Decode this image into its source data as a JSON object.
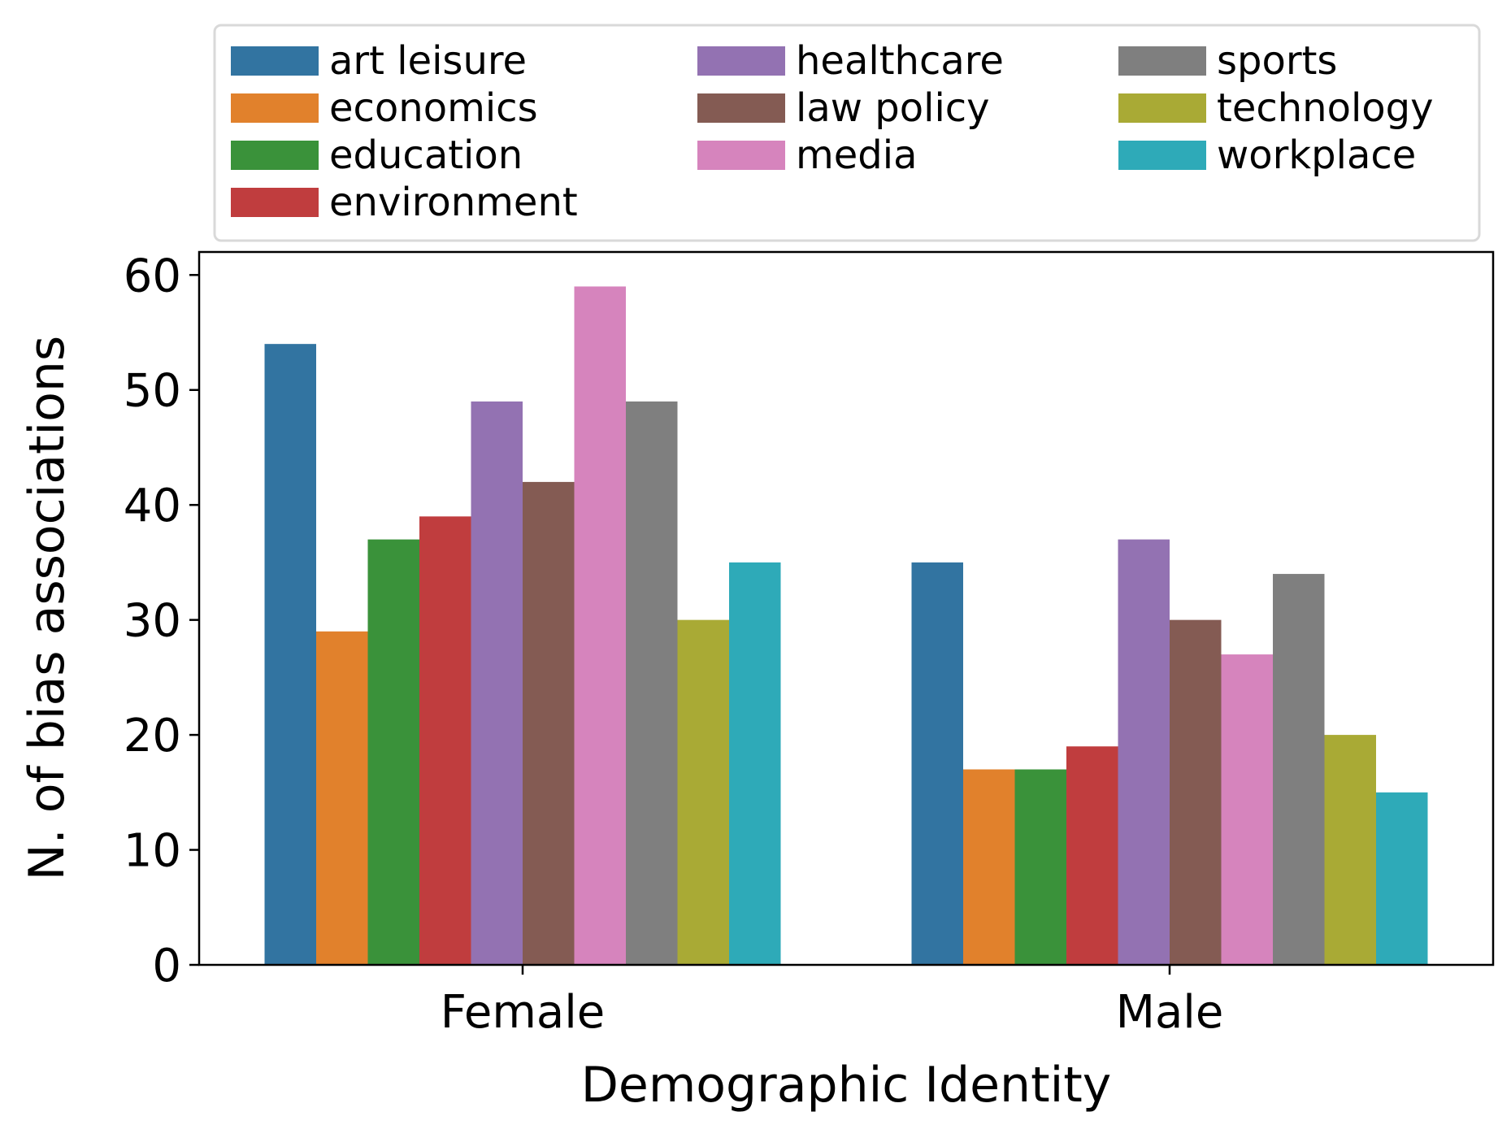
{
  "chart_data": {
    "type": "bar",
    "title": "",
    "xlabel": "Demographic Identity",
    "ylabel": "N. of bias associations",
    "categories": [
      "Female",
      "Male"
    ],
    "ylim": [
      0,
      62
    ],
    "yticks": [
      0,
      10,
      20,
      30,
      40,
      50,
      60
    ],
    "grid": false,
    "legend_position": "top (above plot), 3 columns",
    "series": [
      {
        "name": "art leisure",
        "color": "#3274a1",
        "values": [
          54,
          35
        ]
      },
      {
        "name": "economics",
        "color": "#e1812c",
        "values": [
          29,
          17
        ]
      },
      {
        "name": "education",
        "color": "#3a923a",
        "values": [
          37,
          17
        ]
      },
      {
        "name": "environment",
        "color": "#c03d3e",
        "values": [
          39,
          19
        ]
      },
      {
        "name": "healthcare",
        "color": "#9372b2",
        "values": [
          49,
          37
        ]
      },
      {
        "name": "law policy",
        "color": "#845b53",
        "values": [
          42,
          30
        ]
      },
      {
        "name": "media",
        "color": "#d684bd",
        "values": [
          59,
          27
        ]
      },
      {
        "name": "sports",
        "color": "#7f7f7f",
        "values": [
          49,
          34
        ]
      },
      {
        "name": "technology",
        "color": "#a9aa35",
        "values": [
          30,
          20
        ]
      },
      {
        "name": "workplace",
        "color": "#2eaab8",
        "values": [
          35,
          15
        ]
      }
    ]
  }
}
